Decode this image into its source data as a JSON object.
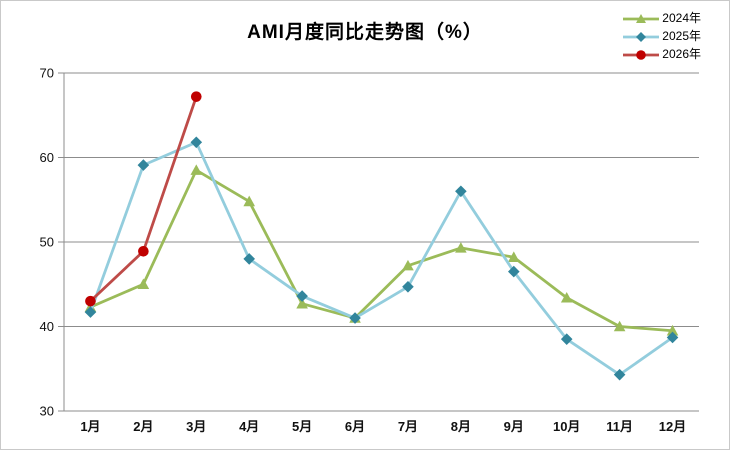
{
  "title": "AMI月度同比走势图（%）",
  "colors": {
    "grid": "#8c8c8c",
    "axis": "#8c8c8c",
    "text": "#000000",
    "frame_border": "#c9c9c9",
    "series_2024": "#9bbb59",
    "series_2025_line": "#93cddd",
    "series_2025_marker": "#31859c",
    "series_2026_line": "#be4b48",
    "series_2026_marker": "#c00000"
  },
  "chart_data": {
    "type": "line",
    "title": "AMI月度同比走势图（%）",
    "categories": [
      "1月",
      "2月",
      "3月",
      "4月",
      "5月",
      "6月",
      "7月",
      "8月",
      "9月",
      "10月",
      "11月",
      "12月"
    ],
    "series": [
      {
        "name": "2024年",
        "marker": "triangle",
        "line_color": "#9bbb59",
        "marker_color": "#9bbb59",
        "values": [
          42.3,
          45.0,
          58.5,
          54.8,
          42.7,
          41.0,
          47.2,
          49.3,
          48.2,
          43.4,
          40.0,
          39.5
        ]
      },
      {
        "name": "2025年",
        "marker": "diamond",
        "line_color": "#93cddd",
        "marker_color": "#31859c",
        "values": [
          41.7,
          59.1,
          61.8,
          48.0,
          43.6,
          41.0,
          44.7,
          56.0,
          46.5,
          38.5,
          34.3,
          38.7
        ]
      },
      {
        "name": "2026年",
        "marker": "circle",
        "line_color": "#be4b48",
        "marker_color": "#c00000",
        "values": [
          43.0,
          48.9,
          67.2,
          null,
          null,
          null,
          null,
          null,
          null,
          null,
          null,
          null
        ]
      }
    ],
    "ylim": [
      30,
      70
    ],
    "yticks": [
      30,
      40,
      50,
      60,
      70
    ],
    "xlabel": "",
    "ylabel": "",
    "grid": true,
    "legend_position": "top-right"
  }
}
